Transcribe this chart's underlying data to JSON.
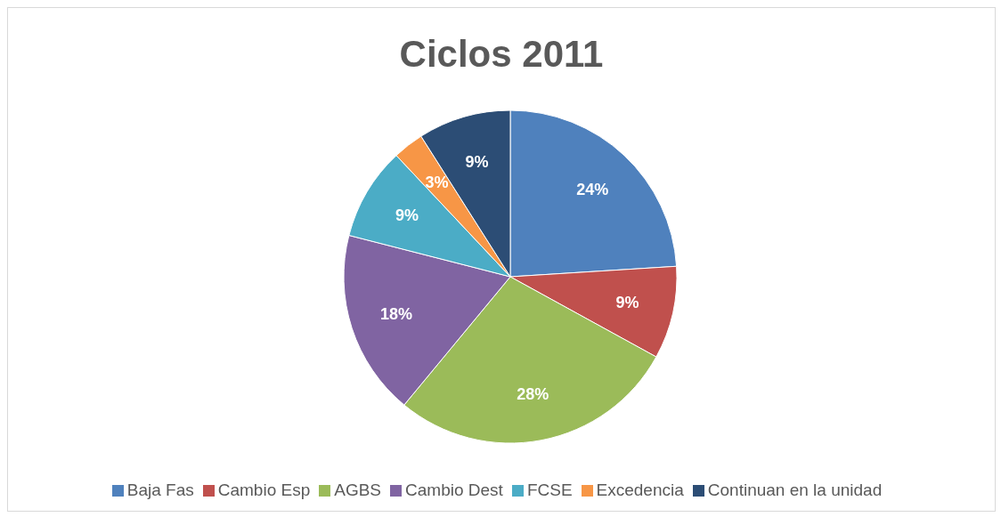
{
  "chart_data": {
    "type": "pie",
    "title": "Ciclos 2011",
    "categories": [
      "Baja Fas",
      "Cambio Esp",
      "AGBS",
      "Cambio Dest",
      "FCSE",
      "Excedencia",
      "Continuan en la unidad"
    ],
    "values": [
      24,
      9,
      28,
      18,
      9,
      3,
      9
    ],
    "value_labels": [
      "24%",
      "9%",
      "28%",
      "18%",
      "9%",
      "3%",
      "9%"
    ],
    "colors": [
      "#4f81bd",
      "#c0504d",
      "#9bbb59",
      "#8064a2",
      "#4bacc6",
      "#f79646",
      "#2c4d75"
    ],
    "legend": "bottom"
  }
}
